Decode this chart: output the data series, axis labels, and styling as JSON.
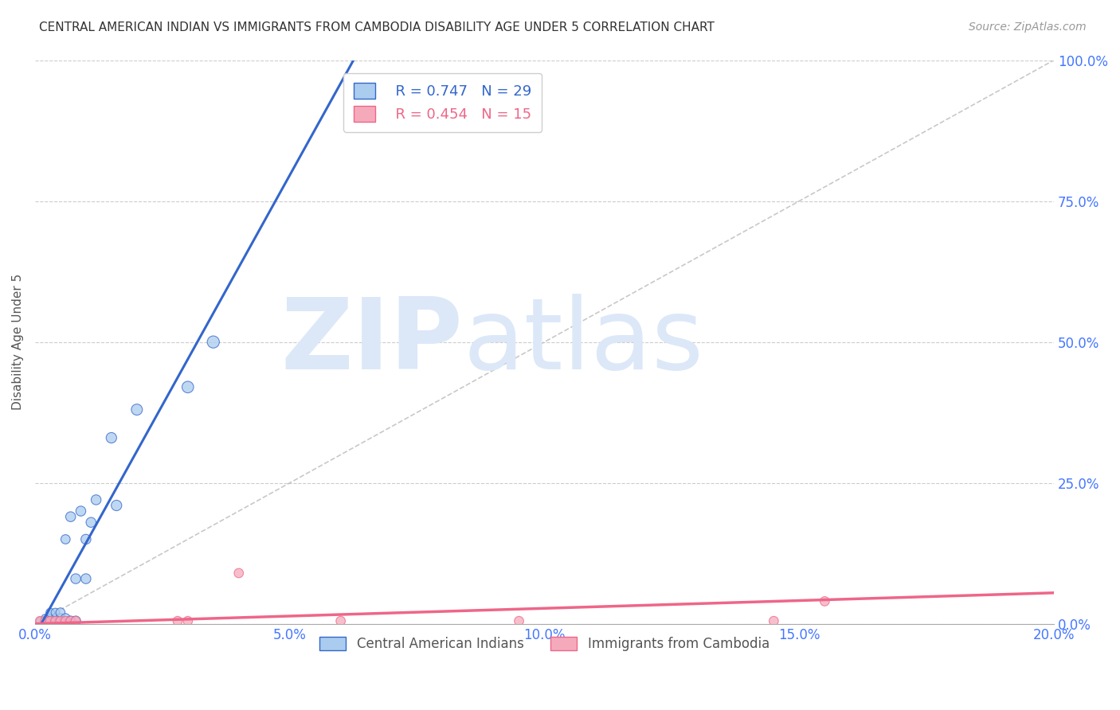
{
  "title": "CENTRAL AMERICAN INDIAN VS IMMIGRANTS FROM CAMBODIA DISABILITY AGE UNDER 5 CORRELATION CHART",
  "source": "Source: ZipAtlas.com",
  "ylabel": "Disability Age Under 5",
  "xlabel_ticks": [
    "0.0%",
    "5.0%",
    "10.0%",
    "15.0%",
    "20.0%"
  ],
  "xlabel_vals": [
    0.0,
    0.05,
    0.1,
    0.15,
    0.2
  ],
  "ylabel_ticks": [
    "0.0%",
    "25.0%",
    "50.0%",
    "75.0%",
    "100.0%"
  ],
  "ylabel_vals": [
    0.0,
    0.25,
    0.5,
    0.75,
    1.0
  ],
  "xlim": [
    0.0,
    0.2
  ],
  "ylim": [
    0.0,
    1.0
  ],
  "title_color": "#333333",
  "source_color": "#999999",
  "tick_color": "#4477ff",
  "watermark_zip": "ZIP",
  "watermark_atlas": "atlas",
  "watermark_color": "#dce8f8",
  "grid_color": "#cccccc",
  "diag_line_color": "#bbbbbb",
  "blue_color": "#aaccee",
  "pink_color": "#f5aabb",
  "blue_line_color": "#3366cc",
  "pink_line_color": "#ee6688",
  "legend_R_blue": "R = 0.747",
  "legend_N_blue": "N = 29",
  "legend_R_pink": "R = 0.454",
  "legend_N_pink": "N = 15",
  "legend_label_blue": "Central American Indians",
  "legend_label_pink": "Immigrants from Cambodia",
  "blue_x": [
    0.001,
    0.002,
    0.002,
    0.003,
    0.003,
    0.003,
    0.004,
    0.004,
    0.004,
    0.005,
    0.005,
    0.005,
    0.006,
    0.006,
    0.006,
    0.007,
    0.007,
    0.008,
    0.008,
    0.009,
    0.01,
    0.01,
    0.011,
    0.012,
    0.015,
    0.016,
    0.02,
    0.03,
    0.035
  ],
  "blue_y": [
    0.005,
    0.005,
    0.01,
    0.005,
    0.01,
    0.02,
    0.005,
    0.01,
    0.02,
    0.005,
    0.01,
    0.02,
    0.005,
    0.01,
    0.15,
    0.005,
    0.19,
    0.005,
    0.08,
    0.2,
    0.08,
    0.15,
    0.18,
    0.22,
    0.33,
    0.21,
    0.38,
    0.42,
    0.5
  ],
  "blue_sizes": [
    50,
    50,
    50,
    60,
    60,
    60,
    60,
    60,
    60,
    70,
    70,
    70,
    70,
    70,
    70,
    80,
    80,
    80,
    80,
    80,
    80,
    80,
    80,
    80,
    90,
    90,
    100,
    110,
    120
  ],
  "pink_x": [
    0.001,
    0.002,
    0.003,
    0.004,
    0.005,
    0.006,
    0.007,
    0.008,
    0.028,
    0.03,
    0.04,
    0.06,
    0.095,
    0.145,
    0.155
  ],
  "pink_y": [
    0.005,
    0.005,
    0.005,
    0.005,
    0.005,
    0.005,
    0.005,
    0.005,
    0.005,
    0.005,
    0.09,
    0.005,
    0.005,
    0.005,
    0.04
  ],
  "pink_sizes": [
    70,
    70,
    70,
    70,
    70,
    70,
    70,
    70,
    70,
    70,
    70,
    70,
    70,
    70,
    70
  ],
  "blue_line_x0": 0.0,
  "blue_line_y0": -0.02,
  "blue_line_x1": 0.038,
  "blue_line_y1": 0.6,
  "pink_line_x0": 0.0,
  "pink_line_y0": 0.0,
  "pink_line_x1": 0.2,
  "pink_line_y1": 0.055
}
